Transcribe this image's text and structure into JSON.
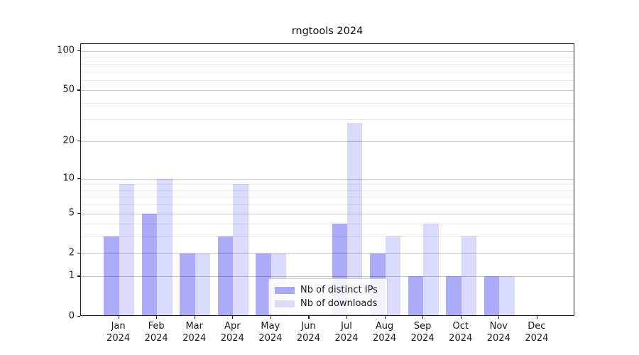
{
  "chart_data": {
    "type": "bar",
    "title": "rngtools 2024",
    "categories": [
      "Jan",
      "Feb",
      "Mar",
      "Apr",
      "May",
      "Jun",
      "Jul",
      "Aug",
      "Sep",
      "Oct",
      "Nov",
      "Dec"
    ],
    "x_sub_label": "2024",
    "series": [
      {
        "name": "Nb of distinct IPs",
        "values": [
          3,
          5,
          2,
          3,
          2,
          0,
          4,
          2,
          1,
          1,
          1,
          0
        ]
      },
      {
        "name": "Nb of downloads",
        "values": [
          9,
          10,
          2,
          9,
          2,
          0,
          28,
          3,
          4,
          3,
          1,
          0
        ]
      }
    ],
    "y_axis": {
      "scale": "log1p",
      "major_ticks": [
        0,
        1,
        2,
        5,
        10,
        20,
        50,
        100
      ],
      "minor_gridlines": [
        3,
        4,
        6,
        7,
        8,
        9,
        30,
        40,
        60,
        70,
        80,
        90
      ],
      "ylim": [
        0,
        120
      ]
    },
    "legend_position": "lower center",
    "grid": true
  },
  "colors": {
    "bar_dark": "rgba(10,10,235,0.34)",
    "bar_light": "rgba(10,10,235,0.15)",
    "swatch_dark": "#a9a9f6",
    "swatch_light": "#dcdcf9",
    "major_grid": "#c9c9c9",
    "minor_grid": "#eaeaea",
    "spine": "#1a1a1a",
    "text": "#1a1a1a",
    "background": "#ffffff"
  }
}
